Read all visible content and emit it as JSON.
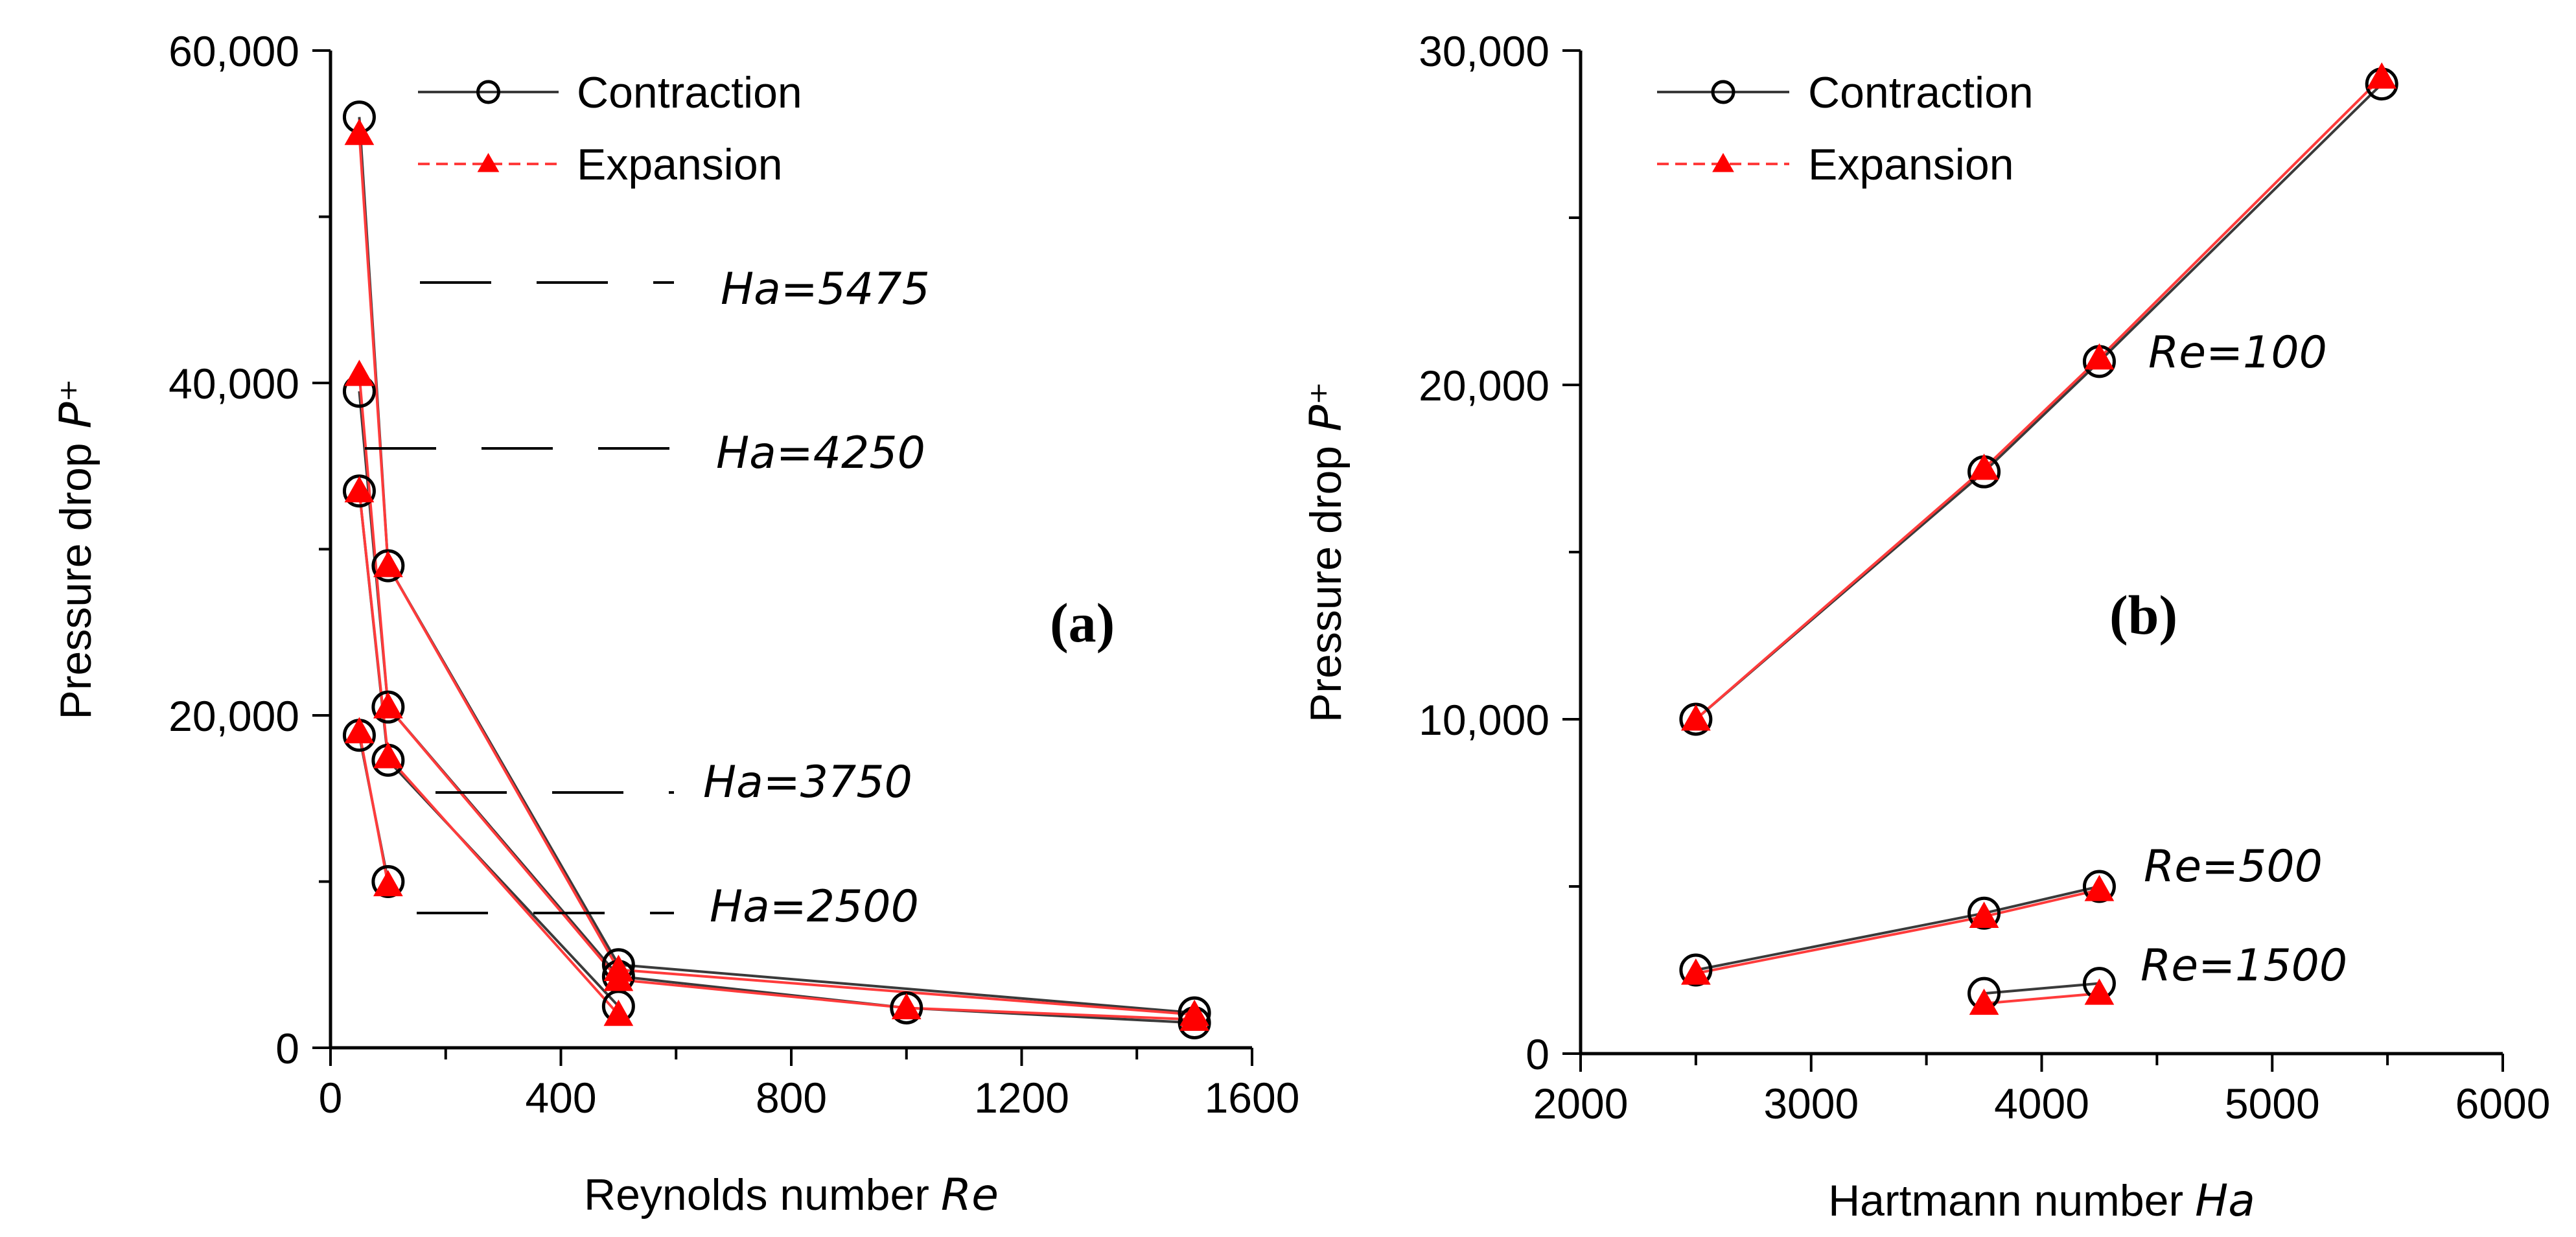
{
  "chart_data": [
    {
      "type": "line",
      "panel_label": "(a)",
      "xlabel": "Reynolds number",
      "xlabel_var": "Re",
      "ylabel": "Pressure drop",
      "ylabel_var": "P⁺",
      "xlim": [
        0,
        1600
      ],
      "ylim": [
        0,
        60000
      ],
      "xticks": [
        0,
        400,
        800,
        1200,
        1600
      ],
      "xtick_labels": [
        "0",
        "400",
        "800",
        "1200",
        "1600"
      ],
      "yticks": [
        0,
        20000,
        40000,
        60000
      ],
      "ytick_labels": [
        "0",
        "20,000",
        "40,000",
        "60,000"
      ],
      "legend": [
        "Contraction",
        "Expansion"
      ],
      "legend_position": "top-right",
      "series": [
        {
          "name": "Contraction",
          "group": "Ha=5475",
          "x": [
            50,
            100,
            500,
            1500
          ],
          "y": [
            56000,
            29000,
            5000,
            2100
          ]
        },
        {
          "name": "Expansion",
          "group": "Ha=5475",
          "x": [
            50,
            100,
            500,
            1500
          ],
          "y": [
            55000,
            29000,
            4700,
            2000
          ]
        },
        {
          "name": "Contraction",
          "group": "Ha=4250",
          "x": [
            50,
            100,
            500,
            1000,
            1500
          ],
          "y": [
            39500,
            20500,
            4300,
            2400,
            1500
          ]
        },
        {
          "name": "Expansion",
          "group": "Ha=4250",
          "x": [
            50,
            100,
            500,
            1000,
            1500
          ],
          "y": [
            40500,
            20500,
            4100,
            2400,
            1700
          ]
        },
        {
          "name": "Contraction",
          "group": "Ha=3750",
          "x": [
            50,
            100,
            500
          ],
          "y": [
            33500,
            17300,
            2500
          ]
        },
        {
          "name": "Expansion",
          "group": "Ha=3750",
          "x": [
            50,
            100,
            500
          ],
          "y": [
            33500,
            17500,
            2000
          ]
        },
        {
          "name": "Contraction",
          "group": "Ha=2500",
          "x": [
            50,
            100
          ],
          "y": [
            18800,
            10000
          ]
        },
        {
          "name": "Expansion",
          "group": "Ha=2500",
          "x": [
            50,
            100
          ],
          "y": [
            19000,
            9800
          ]
        }
      ],
      "annotations": [
        "Ha=5475",
        "Ha=4250",
        "Ha=3750",
        "Ha=2500"
      ]
    },
    {
      "type": "line",
      "panel_label": "(b)",
      "xlabel": "Hartmann number",
      "xlabel_var": "Ha",
      "ylabel": "Pressure drop",
      "ylabel_var": "P⁺",
      "xlim": [
        2000,
        6000
      ],
      "ylim": [
        0,
        30000
      ],
      "xticks": [
        2000,
        3000,
        4000,
        5000,
        6000
      ],
      "xtick_labels": [
        "2000",
        "3000",
        "4000",
        "5000",
        "6000"
      ],
      "yticks": [
        0,
        10000,
        20000,
        30000
      ],
      "ytick_labels": [
        "0",
        "10,000",
        "20,000",
        "30,000"
      ],
      "legend": [
        "Contraction",
        "Expansion"
      ],
      "legend_position": "top-left",
      "series": [
        {
          "name": "Contraction",
          "group": "Re=100",
          "x": [
            2500,
            3750,
            4250,
            5475
          ],
          "y": [
            10000,
            17400,
            20700,
            29000
          ]
        },
        {
          "name": "Expansion",
          "group": "Re=100",
          "x": [
            2500,
            3750,
            4250,
            5475
          ],
          "y": [
            10000,
            17500,
            20800,
            29200
          ]
        },
        {
          "name": "Contraction",
          "group": "Re=500",
          "x": [
            2500,
            3750,
            4250
          ],
          "y": [
            2500,
            4200,
            5000
          ]
        },
        {
          "name": "Expansion",
          "group": "Re=500",
          "x": [
            2500,
            3750,
            4250
          ],
          "y": [
            2400,
            4100,
            4900
          ]
        },
        {
          "name": "Contraction",
          "group": "Re=1500",
          "x": [
            3750,
            4250
          ],
          "y": [
            1800,
            2100
          ]
        },
        {
          "name": "Expansion",
          "group": "Re=1500",
          "x": [
            3750,
            4250
          ],
          "y": [
            1500,
            1800
          ]
        }
      ],
      "annotations": [
        "Re=100",
        "Re=500",
        "Re=1500"
      ]
    }
  ]
}
